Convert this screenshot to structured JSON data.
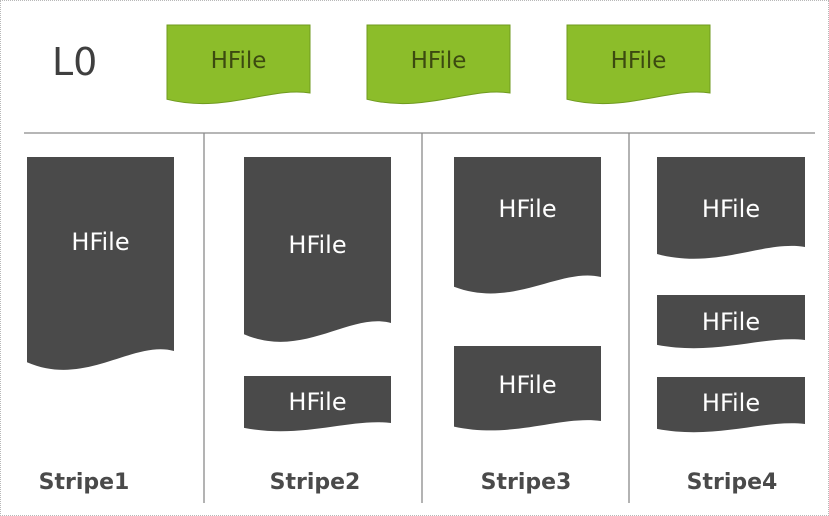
{
  "level_label": "L0",
  "file_label": "HFile",
  "colors": {
    "l0_file": "#8cbd2a",
    "l0_file_stroke": "#6f9a1f",
    "l0_text": "#3c4a10",
    "stripe_file": "#4a4a4a",
    "stripe_text": "#ffffff",
    "level_text": "#3f3f3f",
    "stripe_label": "#4a4a4a",
    "divider": "#8a8a8a"
  },
  "l0_files": [
    "HFile",
    "HFile",
    "HFile"
  ],
  "stripes": [
    {
      "name": "Stripe1",
      "files": [
        "HFile"
      ]
    },
    {
      "name": "Stripe2",
      "files": [
        "HFile",
        "HFile"
      ]
    },
    {
      "name": "Stripe3",
      "files": [
        "HFile",
        "HFile"
      ]
    },
    {
      "name": "Stripe4",
      "files": [
        "HFile",
        "HFile",
        "HFile"
      ]
    }
  ]
}
